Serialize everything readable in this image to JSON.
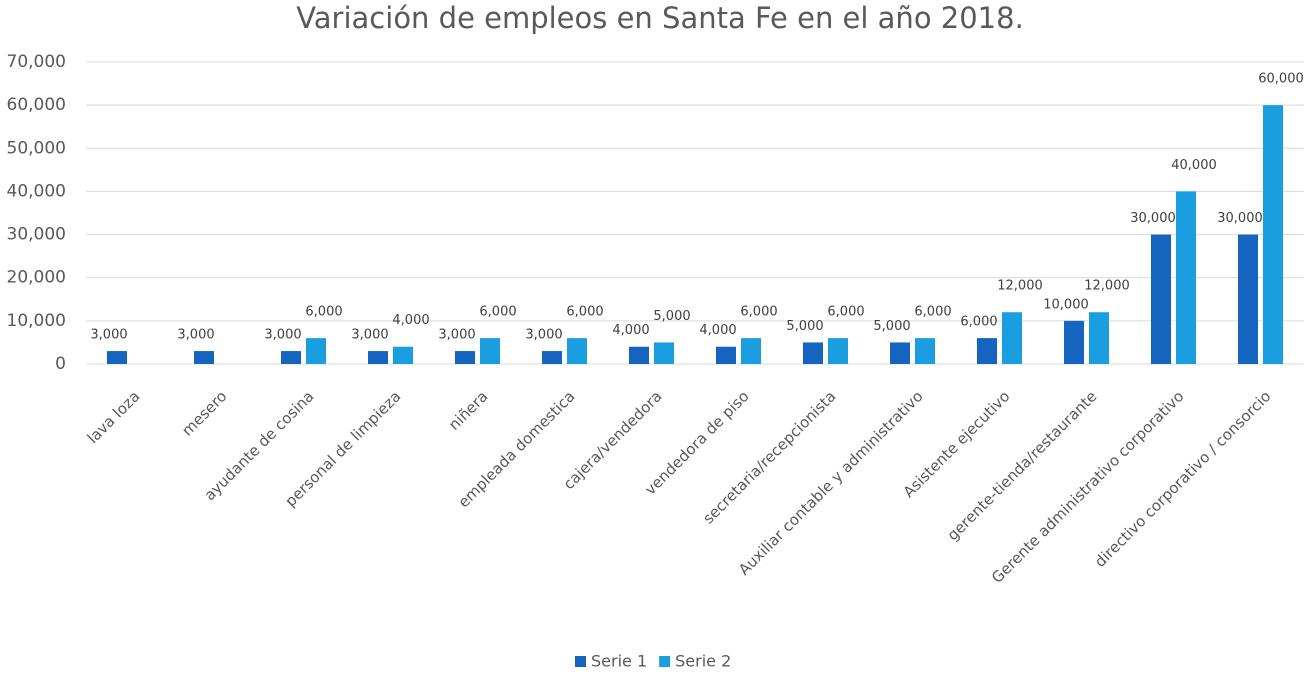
{
  "chart_data": {
    "type": "bar",
    "title": "Variación de empleos en Santa Fe en el año 2018.",
    "categories": [
      "lava loza",
      "mesero",
      "ayudante de cosina",
      "personal de limpieza",
      "niñera",
      "empleada domestica",
      "cajera/vendedora",
      "vendedora de piso",
      "secretaria/recepcionista",
      "Auxiliar contable y administrativo",
      "Asistente ejecutivo",
      "gerente-tienda/restaurante",
      "Gerente administrativo corporativo",
      "directivo corporativo / consorcio"
    ],
    "series": [
      {
        "name": "Serie 1",
        "color": "#1565c0",
        "values": [
          3000,
          3000,
          3000,
          3000,
          3000,
          3000,
          4000,
          4000,
          5000,
          5000,
          6000,
          10000,
          30000,
          30000
        ],
        "value_labels": [
          "3,000",
          "3,000",
          "3,000",
          "3,000",
          "3,000",
          "3,000",
          "4,000",
          "4,000",
          "5,000",
          "5,000",
          "6,000",
          "10,000",
          "30,000",
          "30,000"
        ]
      },
      {
        "name": "Serie 2",
        "color": "#1a9ee0",
        "values": [
          null,
          null,
          6000,
          4000,
          6000,
          6000,
          5000,
          6000,
          6000,
          6000,
          12000,
          12000,
          40000,
          60000
        ],
        "value_labels": [
          null,
          null,
          "6,000",
          "4,000",
          "6,000",
          "6,000",
          "5,000",
          "6,000",
          "6,000",
          "6,000",
          "12,000",
          "12,000",
          "40,000",
          "60,000"
        ]
      }
    ],
    "ylim": [
      0,
      70000
    ],
    "yticks": [
      0,
      {
        "value": 10000,
        "label": "10,000"
      },
      {
        "value": 20000,
        "label": "20,000"
      },
      {
        "value": 30000,
        "label": "30,000"
      },
      {
        "value": 40000,
        "label": "40,000"
      },
      {
        "value": 50000,
        "label": "50,000"
      },
      {
        "value": 60000,
        "label": "60,000"
      },
      {
        "value": 70000,
        "label": "70,000"
      }
    ],
    "grid": true,
    "legend": "bottom"
  }
}
